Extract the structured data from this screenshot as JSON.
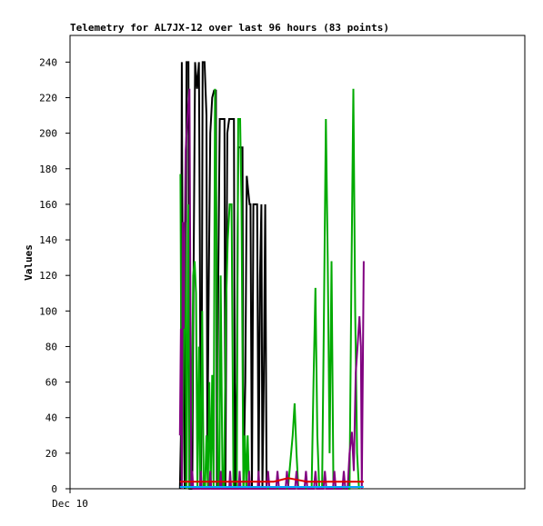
{
  "chart_data": {
    "type": "line",
    "title": "Telemetry for AL7JX-12 over last 96 hours (83 points)",
    "ylabel": "Values",
    "xlabel": "",
    "ylim": [
      0,
      255
    ],
    "y_ticks": [
      0,
      20,
      40,
      60,
      80,
      100,
      120,
      140,
      160,
      180,
      200,
      220,
      240
    ],
    "x_tick_labels": [
      {
        "label": "Dec 10",
        "x": 0
      }
    ],
    "xlim": [
      0,
      96
    ],
    "grid": false,
    "legend": "none",
    "series": [
      {
        "color": "#000000",
        "points": [
          [
            23.2,
            0
          ],
          [
            23.4,
            30
          ],
          [
            23.6,
            240
          ],
          [
            23.8,
            80
          ],
          [
            24.0,
            150
          ],
          [
            24.2,
            0
          ],
          [
            24.4,
            90
          ],
          [
            24.6,
            240
          ],
          [
            25.0,
            240
          ],
          [
            25.2,
            0
          ],
          [
            25.8,
            0
          ],
          [
            26.0,
            90
          ],
          [
            26.4,
            240
          ],
          [
            26.8,
            225
          ],
          [
            27.2,
            240
          ],
          [
            27.4,
            140
          ],
          [
            27.6,
            0
          ],
          [
            27.8,
            70
          ],
          [
            28.0,
            240
          ],
          [
            28.4,
            240
          ],
          [
            28.8,
            210
          ],
          [
            29.0,
            20
          ],
          [
            29.3,
            120
          ],
          [
            29.6,
            200
          ],
          [
            30.0,
            220
          ],
          [
            30.4,
            224
          ],
          [
            30.8,
            224
          ],
          [
            31.0,
            0
          ],
          [
            31.3,
            120
          ],
          [
            31.6,
            208
          ],
          [
            32.0,
            208
          ],
          [
            32.6,
            208
          ],
          [
            32.8,
            0
          ],
          [
            33.2,
            200
          ],
          [
            33.6,
            208
          ],
          [
            34.2,
            208
          ],
          [
            34.6,
            208
          ],
          [
            34.8,
            0
          ],
          [
            35.2,
            60
          ],
          [
            35.5,
            192
          ],
          [
            35.8,
            192
          ],
          [
            36.4,
            192
          ],
          [
            36.6,
            0
          ],
          [
            37.0,
            60
          ],
          [
            37.3,
            176
          ],
          [
            37.6,
            168
          ],
          [
            37.9,
            160
          ],
          [
            38.1,
            160
          ],
          [
            38.4,
            0
          ],
          [
            38.7,
            160
          ],
          [
            39.2,
            160
          ],
          [
            39.5,
            160
          ],
          [
            39.8,
            0
          ],
          [
            40.1,
            120
          ],
          [
            40.4,
            160
          ],
          [
            40.6,
            0
          ],
          [
            40.9,
            60
          ],
          [
            41.2,
            160
          ],
          [
            41.5,
            0
          ]
        ]
      },
      {
        "color": "#00aa00",
        "points": [
          [
            23.3,
            177
          ],
          [
            23.6,
            0
          ],
          [
            24.0,
            80
          ],
          [
            24.3,
            150
          ],
          [
            24.6,
            0
          ],
          [
            25.0,
            160
          ],
          [
            25.3,
            0
          ],
          [
            25.7,
            40
          ],
          [
            26.0,
            120
          ],
          [
            26.3,
            128
          ],
          [
            26.6,
            110
          ],
          [
            26.9,
            0
          ],
          [
            27.2,
            80
          ],
          [
            27.5,
            0
          ],
          [
            27.9,
            100
          ],
          [
            28.2,
            0
          ],
          [
            28.5,
            0
          ],
          [
            28.8,
            30
          ],
          [
            29.1,
            0
          ],
          [
            29.4,
            60
          ],
          [
            29.7,
            0
          ],
          [
            30.0,
            64
          ],
          [
            30.3,
            0
          ],
          [
            30.6,
            225
          ],
          [
            30.9,
            150
          ],
          [
            31.2,
            0
          ],
          [
            31.5,
            0
          ],
          [
            31.8,
            120
          ],
          [
            32.2,
            0
          ],
          [
            32.5,
            0
          ],
          [
            32.9,
            100
          ],
          [
            33.3,
            140
          ],
          [
            33.7,
            160
          ],
          [
            34.1,
            160
          ],
          [
            34.5,
            0
          ],
          [
            34.8,
            0
          ],
          [
            35.2,
            0
          ],
          [
            35.5,
            208
          ],
          [
            35.9,
            208
          ],
          [
            36.2,
            160
          ],
          [
            36.6,
            0
          ],
          [
            36.9,
            30
          ],
          [
            37.2,
            0
          ],
          [
            37.5,
            30
          ],
          [
            37.8,
            0
          ],
          [
            41.0,
            0
          ],
          [
            43.0,
            0
          ],
          [
            46.0,
            0
          ],
          [
            47.0,
            30
          ],
          [
            47.4,
            48
          ],
          [
            47.8,
            20
          ],
          [
            48.2,
            0
          ],
          [
            51.0,
            0
          ],
          [
            51.4,
            60
          ],
          [
            51.8,
            113
          ],
          [
            52.2,
            30
          ],
          [
            52.6,
            0
          ],
          [
            53.2,
            0
          ],
          [
            53.6,
            100
          ],
          [
            54.0,
            208
          ],
          [
            54.4,
            130
          ],
          [
            54.8,
            20
          ],
          [
            55.2,
            128
          ],
          [
            55.6,
            0
          ],
          [
            59.0,
            0
          ],
          [
            59.4,
            120
          ],
          [
            59.8,
            225
          ],
          [
            60.2,
            100
          ],
          [
            60.6,
            20
          ],
          [
            61.0,
            0
          ]
        ]
      },
      {
        "color": "#800080",
        "points": [
          [
            23.2,
            30
          ],
          [
            23.4,
            90
          ],
          [
            23.6,
            0
          ],
          [
            23.8,
            150
          ],
          [
            24.0,
            90
          ],
          [
            24.4,
            190
          ],
          [
            24.8,
            210
          ],
          [
            25.2,
            225
          ],
          [
            25.6,
            0
          ],
          [
            25.8,
            10
          ],
          [
            26.0,
            0
          ],
          [
            27.4,
            0
          ],
          [
            27.6,
            10
          ],
          [
            27.8,
            0
          ],
          [
            29.4,
            0
          ],
          [
            29.6,
            10
          ],
          [
            29.8,
            0
          ],
          [
            31.6,
            0
          ],
          [
            31.8,
            10
          ],
          [
            32.0,
            0
          ],
          [
            33.6,
            0
          ],
          [
            33.8,
            10
          ],
          [
            34.0,
            0
          ],
          [
            35.6,
            0
          ],
          [
            35.8,
            10
          ],
          [
            36.0,
            0
          ],
          [
            37.6,
            0
          ],
          [
            37.8,
            10
          ],
          [
            38.0,
            0
          ],
          [
            39.6,
            0
          ],
          [
            39.8,
            10
          ],
          [
            40.0,
            0
          ],
          [
            41.5,
            0
          ],
          [
            41.8,
            10
          ],
          [
            42.1,
            0
          ],
          [
            43.5,
            0
          ],
          [
            43.8,
            10
          ],
          [
            44.1,
            0
          ],
          [
            45.5,
            0
          ],
          [
            45.8,
            10
          ],
          [
            46.1,
            0
          ],
          [
            47.5,
            0
          ],
          [
            47.8,
            10
          ],
          [
            48.1,
            0
          ],
          [
            49.5,
            0
          ],
          [
            49.8,
            10
          ],
          [
            50.1,
            0
          ],
          [
            51.5,
            0
          ],
          [
            51.8,
            10
          ],
          [
            52.1,
            0
          ],
          [
            53.5,
            0
          ],
          [
            53.8,
            10
          ],
          [
            54.1,
            0
          ],
          [
            55.5,
            0
          ],
          [
            55.8,
            10
          ],
          [
            56.1,
            0
          ],
          [
            57.5,
            0
          ],
          [
            57.8,
            10
          ],
          [
            58.1,
            0
          ],
          [
            58.6,
            0
          ],
          [
            59.0,
            20
          ],
          [
            59.5,
            32
          ],
          [
            59.9,
            10
          ],
          [
            60.3,
            65
          ],
          [
            60.7,
            80
          ],
          [
            61.1,
            97
          ],
          [
            61.4,
            80
          ],
          [
            61.6,
            0
          ],
          [
            62.0,
            128
          ]
        ]
      },
      {
        "color": "#dd0000",
        "points": [
          [
            23.2,
            4
          ],
          [
            41.5,
            4
          ],
          [
            43.0,
            4
          ],
          [
            46.0,
            6
          ],
          [
            48.0,
            5
          ],
          [
            50.0,
            4
          ],
          [
            61.4,
            4
          ],
          [
            62.0,
            4
          ]
        ]
      },
      {
        "color": "#00aaff",
        "points": [
          [
            23.2,
            1
          ],
          [
            62.0,
            1
          ]
        ]
      }
    ]
  }
}
